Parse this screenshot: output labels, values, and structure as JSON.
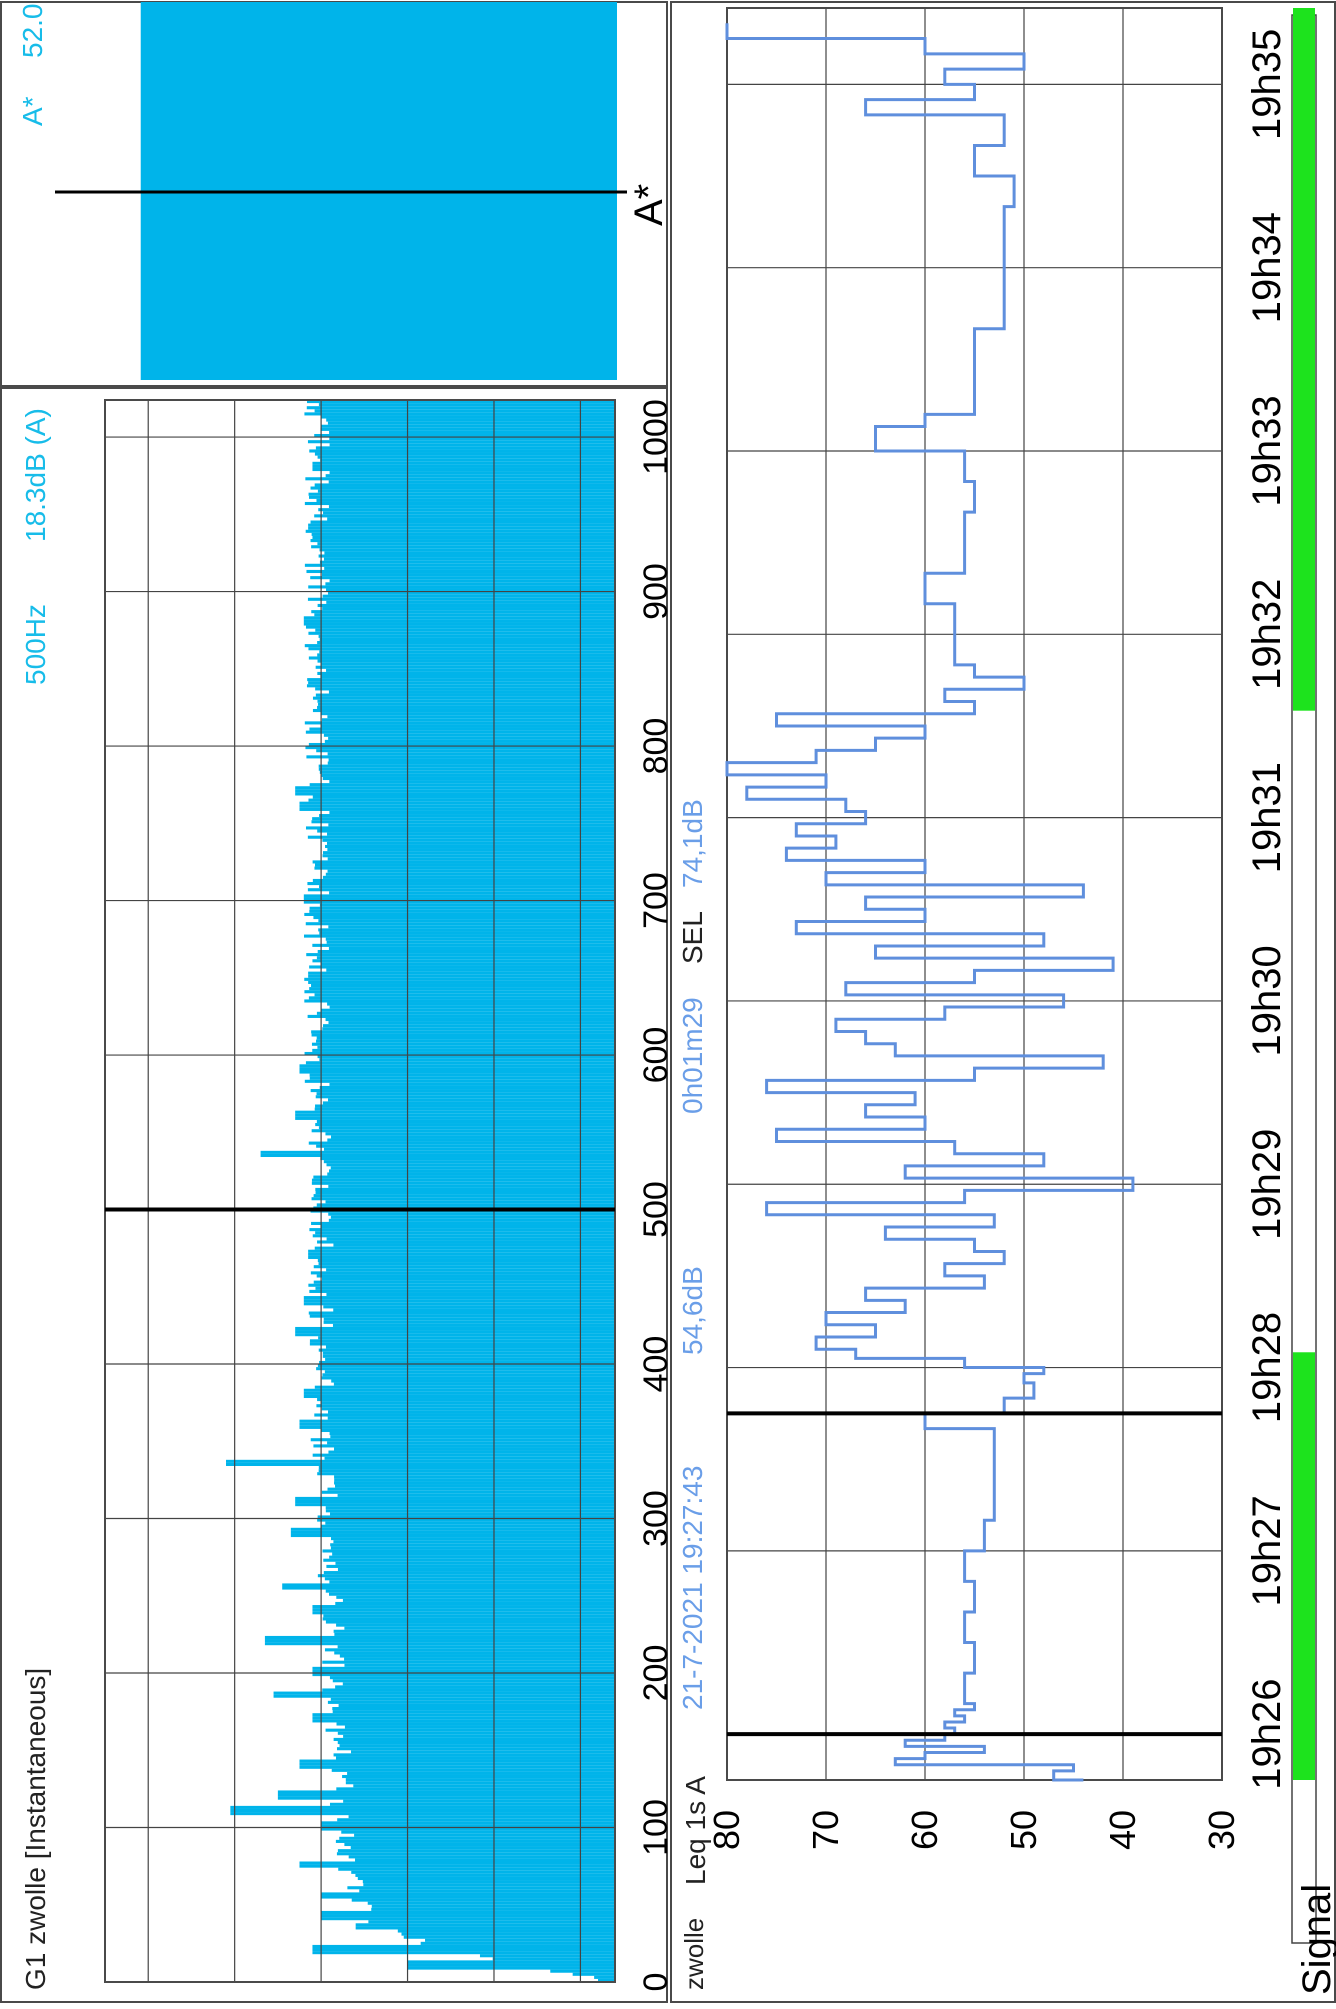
{
  "colors": {
    "spectrum_fill": "#00b4ea",
    "spectrum_text": "#17bce9",
    "trace": "#5f8fdd",
    "trace_text": "#6a9ee8",
    "signal_ok": "#1de31d",
    "frame": "#4a4a4a",
    "grid": "#444444"
  },
  "spectrum_panel": {
    "title": "G1 zwolle [Instantaneous]",
    "cursor_freq": "500Hz",
    "cursor_level": "18.3dB (A)",
    "cursor_marker": "500"
  },
  "overall_panel": {
    "label": "A*",
    "value": "52.0",
    "marker_label": "A*"
  },
  "time_panel": {
    "site": "zwolle",
    "metric": "Leq 1s A",
    "start_datetime": "21-7-2021 19:27:43",
    "leq_value": "54,6dB",
    "duration": "0h01m29",
    "sel_label": "SEL",
    "sel_value": "74,1dB",
    "signal_label": "Signal"
  },
  "chart_data": [
    {
      "type": "bar",
      "title": "G1 zwolle [Instantaneous]",
      "xlabel": "",
      "ylabel": "",
      "xlim": [
        0,
        1024
      ],
      "ylim": [
        -48,
        70
      ],
      "x_ticks": [
        0,
        100,
        200,
        300,
        400,
        500,
        600,
        700,
        800,
        900,
        1000
      ],
      "y_ticks": [
        -40,
        -20,
        0,
        20,
        40,
        60
      ],
      "cursor_x": 500,
      "grid": true,
      "spectrum_profile": [
        [
          0,
          -45
        ],
        [
          10,
          -30
        ],
        [
          20,
          -10
        ],
        [
          30,
          3
        ],
        [
          40,
          8
        ],
        [
          50,
          10
        ],
        [
          60,
          12
        ],
        [
          80,
          14
        ],
        [
          100,
          15
        ],
        [
          150,
          16
        ],
        [
          200,
          17
        ],
        [
          250,
          18
        ],
        [
          300,
          19
        ],
        [
          400,
          20
        ],
        [
          500,
          20
        ],
        [
          600,
          21
        ],
        [
          700,
          21
        ],
        [
          800,
          21
        ],
        [
          900,
          21
        ],
        [
          1024,
          21
        ]
      ],
      "spectrum_peaks": [
        [
          10,
          0
        ],
        [
          20,
          22
        ],
        [
          35,
          12
        ],
        [
          42,
          20
        ],
        [
          55,
          20
        ],
        [
          75,
          25
        ],
        [
          100,
          20
        ],
        [
          110,
          41
        ],
        [
          120,
          30
        ],
        [
          140,
          25
        ],
        [
          170,
          22
        ],
        [
          185,
          31
        ],
        [
          200,
          22
        ],
        [
          220,
          33
        ],
        [
          240,
          22
        ],
        [
          255,
          29
        ],
        [
          290,
          27
        ],
        [
          310,
          26
        ],
        [
          335,
          42
        ],
        [
          360,
          25
        ],
        [
          380,
          24
        ],
        [
          420,
          26
        ],
        [
          440,
          24
        ],
        [
          470,
          23
        ],
        [
          500,
          21
        ],
        [
          535,
          34
        ],
        [
          560,
          26
        ],
        [
          590,
          25
        ],
        [
          650,
          23
        ],
        [
          700,
          24
        ],
        [
          760,
          25
        ],
        [
          770,
          26
        ],
        [
          840,
          23
        ],
        [
          880,
          24
        ],
        [
          940,
          23
        ],
        [
          980,
          22
        ]
      ]
    },
    {
      "type": "bar",
      "categories": [
        "A*"
      ],
      "values": [
        52.0
      ],
      "ylim": [
        -48,
        70
      ]
    },
    {
      "type": "line",
      "xlabel": "",
      "ylabel": "",
      "x_ticks": [
        "19h26",
        "19h27",
        "19h28",
        "19h29",
        "19h30",
        "19h31",
        "19h32",
        "19h33",
        "19h34",
        "19h35"
      ],
      "xlim_seconds_after_19h26": [
        -15,
        565
      ],
      "y_ticks": [
        30,
        40,
        50,
        60,
        70,
        80
      ],
      "ylim": [
        30,
        80
      ],
      "cursor_times": [
        "19h26:00",
        "19h27:45"
      ],
      "grid": true,
      "signal_ok_ranges_seconds_after_19h26": [
        [
          -15,
          125
        ],
        [
          335,
          565
        ]
      ],
      "series": [
        {
          "x_seconds_after_19h26": [
            -15,
            -12,
            -10,
            -8,
            -6,
            -4,
            -2,
            0,
            2,
            4,
            6,
            8,
            10,
            20,
            30,
            40,
            50,
            60,
            70,
            80,
            90,
            100,
            105,
            110,
            115,
            118,
            120,
            123,
            126,
            130,
            134,
            138,
            142,
            146,
            150,
            154,
            158,
            162,
            166,
            170,
            174,
            178,
            182,
            186,
            190,
            194,
            198,
            202,
            206,
            210,
            214,
            218,
            222,
            226,
            230,
            234,
            238,
            242,
            246,
            250,
            254,
            258,
            262,
            266,
            270,
            274,
            278,
            282,
            286,
            290,
            294,
            298,
            302,
            306,
            310,
            314,
            318,
            322,
            326,
            330,
            334,
            338,
            342,
            346,
            350,
            360,
            370,
            380,
            390,
            400,
            410,
            420,
            428,
            432,
            436,
            440,
            460,
            480,
            500,
            510,
            520,
            530,
            535,
            540,
            545,
            550,
            555,
            560
          ],
          "y": [
            44,
            47,
            45,
            63,
            60,
            54,
            62,
            58,
            57,
            58,
            56,
            57,
            55,
            56,
            55,
            56,
            55,
            56,
            54,
            53,
            53,
            53,
            60,
            52,
            49,
            50,
            48,
            56,
            67,
            71,
            65,
            70,
            62,
            66,
            54,
            58,
            52,
            55,
            64,
            53,
            76,
            56,
            39,
            62,
            48,
            57,
            75,
            60,
            66,
            61,
            76,
            55,
            42,
            63,
            66,
            69,
            58,
            46,
            68,
            55,
            41,
            65,
            48,
            73,
            60,
            66,
            44,
            70,
            60,
            74,
            69,
            73,
            66,
            68,
            78,
            70,
            83,
            71,
            65,
            60,
            75,
            55,
            58,
            50,
            55,
            57,
            57,
            60,
            56,
            56,
            55,
            56,
            65,
            60,
            55,
            55,
            55,
            52,
            52,
            51,
            55,
            52,
            66,
            55,
            58,
            50,
            60,
            80
          ]
        }
      ]
    }
  ]
}
